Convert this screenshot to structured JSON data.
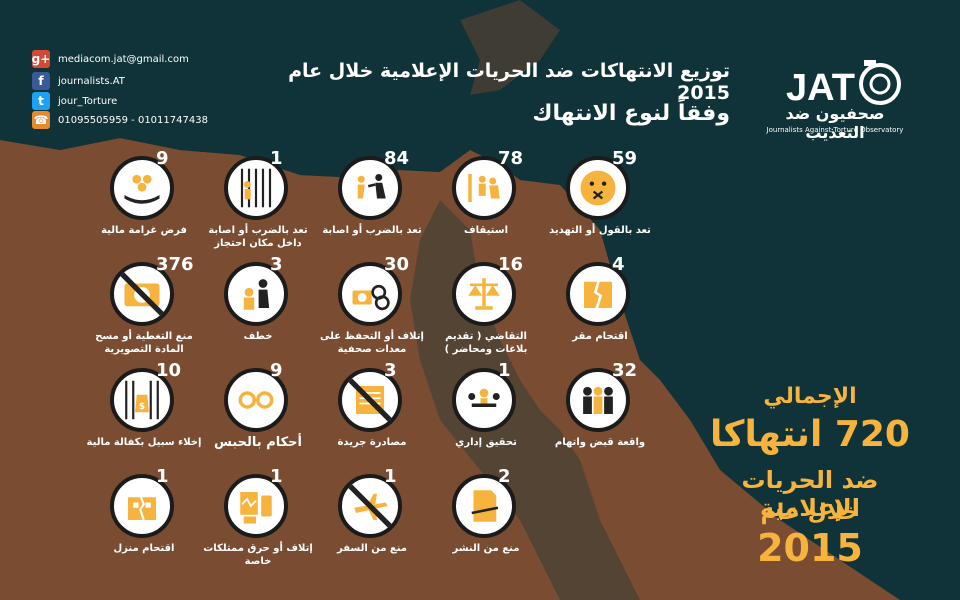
{
  "contacts": [
    {
      "icon": "google-plus-icon",
      "symbol": "g+",
      "color": "#d34836",
      "text": "mediacom.jat@gmail.com"
    },
    {
      "icon": "facebook-icon",
      "symbol": "f",
      "color": "#3b5998",
      "text": "journalists.AT"
    },
    {
      "icon": "twitter-icon",
      "symbol": "t",
      "color": "#1da1f2",
      "text": "jour_Torture"
    },
    {
      "icon": "phone-icon",
      "symbol": "☎",
      "color": "#e68a2e",
      "text": "01095505959 - 01011747438"
    }
  ],
  "title": {
    "line1": "توزيع الانتهاكات ضد الحريات الإعلامية خلال عام 2015",
    "line2": "وفقاً لنوع الانتهاك"
  },
  "logo": {
    "mark": "JAT",
    "arabic": "صحفيون ضد التعذيب",
    "english": "Journalists Against Torture Observatory"
  },
  "total": {
    "heading": "الإجمالي",
    "count": "720 انتهاكا",
    "line1": "ضد الحريات الإعلامية",
    "line2": "خلال عام",
    "year": "2015"
  },
  "violations": [
    {
      "count": "59",
      "label": "تعد بالقول أو التهديد",
      "icon": "silenced-face-icon"
    },
    {
      "count": "78",
      "label": "استيقاف",
      "icon": "police-stop-icon"
    },
    {
      "count": "84",
      "label": "تعد بالضرب أو اصابة",
      "icon": "beating-icon"
    },
    {
      "count": "1",
      "label": "تعد بالضرب أو اصابة داخل مكان احتجاز",
      "icon": "prison-beating-icon"
    },
    {
      "count": "9",
      "label": "فرض غرامة مالية",
      "icon": "money-hand-icon"
    },
    {
      "count": "4",
      "label": "اقتحام مقر",
      "icon": "broken-building-icon"
    },
    {
      "count": "16",
      "label": "التقاضي ( تقديم بلاغات ومحاضر )",
      "icon": "scales-icon"
    },
    {
      "count": "30",
      "label": "إتلاف أو التحفظ على معدات صحفية",
      "icon": "camera-handcuffs-icon"
    },
    {
      "count": "3",
      "label": "خطف",
      "icon": "kidnap-icon"
    },
    {
      "count": "376",
      "label": "منع التغطية أو مسح المادة التصويرية",
      "icon": "no-camera-icon"
    },
    {
      "count": "32",
      "label": "واقعة قبض واتهام",
      "icon": "arrest-icon"
    },
    {
      "count": "1",
      "label": "تحقيق إداري",
      "icon": "meeting-icon"
    },
    {
      "count": "3",
      "label": "مصادرة جريدة",
      "icon": "no-newspaper-icon"
    },
    {
      "count": "9",
      "label": "أحكام بالحبس",
      "icon": "handcuffs-icon"
    },
    {
      "count": "10",
      "label": "إخلاء سبيل بكفالة مالية",
      "icon": "bail-money-icon"
    },
    {
      "count": "2",
      "label": "منع من النشر",
      "icon": "torn-paper-icon"
    },
    {
      "count": "1",
      "label": "منع من السفر",
      "icon": "no-plane-icon"
    },
    {
      "count": "1",
      "label": "إتلاف أو حرق ممتلكات خاصة",
      "icon": "damaged-devices-icon"
    },
    {
      "count": "1",
      "label": "اقتحام منزل",
      "icon": "broken-house-icon"
    }
  ]
}
